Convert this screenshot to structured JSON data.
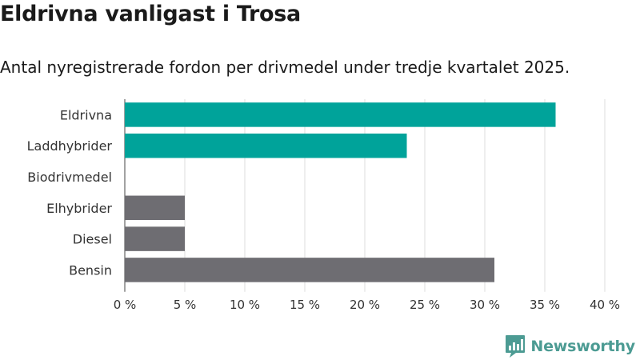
{
  "header": {
    "title": "Eldrivna vanligast i Trosa",
    "subtitle": "Antal nyregistrerade fordon per drivmedel under tredje kvartalet 2025."
  },
  "brand": {
    "name": "Newsworthy",
    "color": "#4c9b93"
  },
  "colors": {
    "highlight": "#00a39a",
    "default": "#6e6d72",
    "grid": "#dddddd"
  },
  "chart_data": {
    "type": "bar",
    "orientation": "horizontal",
    "categories": [
      "Eldrivna",
      "Laddhybrider",
      "Biodrivmedel",
      "Elhybrider",
      "Diesel",
      "Bensin"
    ],
    "values": [
      35.9,
      23.5,
      0,
      5,
      5,
      30.8
    ],
    "highlight": [
      true,
      true,
      true,
      false,
      false,
      false
    ],
    "xlim": [
      0,
      40
    ],
    "xticks": [
      0,
      5,
      10,
      15,
      20,
      25,
      30,
      35,
      40
    ],
    "tick_labels": [
      "0 %",
      "5 %",
      "10 %",
      "15 %",
      "20 %",
      "25 %",
      "30 %",
      "35 %",
      "40 %"
    ],
    "grid": true
  }
}
